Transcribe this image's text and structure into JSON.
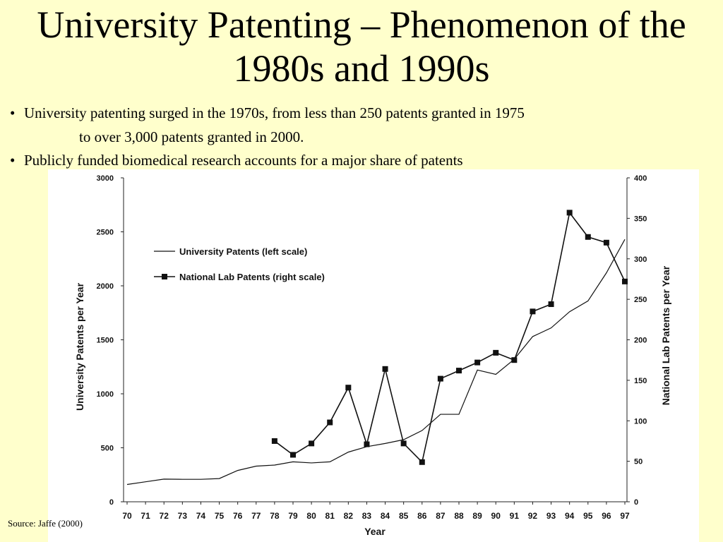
{
  "slide": {
    "title": "University Patenting – Phenomenon of the 1980s and 1990s",
    "bullets": [
      {
        "text": "University patenting surged in the 1970s, from less than 250 patents granted in 1975",
        "cont": "to over 3,000 patents granted in 2000."
      },
      {
        "text": "Publicly funded biomedical research accounts for a major share of patents",
        "cont": ""
      }
    ],
    "bullet_symbol": "•",
    "source": "Source: Jaffe (2000)"
  },
  "chart_data": {
    "type": "line",
    "x": [
      "70",
      "71",
      "72",
      "73",
      "74",
      "75",
      "76",
      "77",
      "78",
      "79",
      "80",
      "81",
      "82",
      "83",
      "84",
      "85",
      "86",
      "87",
      "88",
      "89",
      "90",
      "91",
      "92",
      "93",
      "94",
      "95",
      "96",
      "97"
    ],
    "xlabel": "Year",
    "ylabel_left": "University Patents per Year",
    "ylabel_right": "National Lab Patents per Year",
    "ylim_left": [
      0,
      3000
    ],
    "ylim_right": [
      0,
      400
    ],
    "yticks_left": [
      "0",
      "500",
      "1000",
      "1500",
      "2000",
      "2500",
      "3000"
    ],
    "yticks_right": [
      "0",
      "50",
      "100",
      "150",
      "200",
      "250",
      "300",
      "350",
      "400"
    ],
    "grid": false,
    "legend_position": "upper-left",
    "series": [
      {
        "name": "University Patents (left scale)",
        "axis": "left",
        "marker": "none",
        "values": [
          160,
          185,
          210,
          208,
          208,
          215,
          290,
          330,
          340,
          370,
          360,
          370,
          460,
          510,
          540,
          575,
          660,
          810,
          810,
          1220,
          1180,
          1320,
          1530,
          1610,
          1760,
          1860,
          2120,
          2430
        ]
      },
      {
        "name": "National Lab Patents (right scale)",
        "axis": "right",
        "marker": "square",
        "values": [
          null,
          null,
          null,
          null,
          null,
          null,
          null,
          null,
          75,
          58,
          72,
          98,
          141,
          71,
          164,
          72,
          49,
          152,
          162,
          172,
          184,
          175,
          235,
          244,
          357,
          327,
          320,
          272
        ]
      }
    ]
  }
}
